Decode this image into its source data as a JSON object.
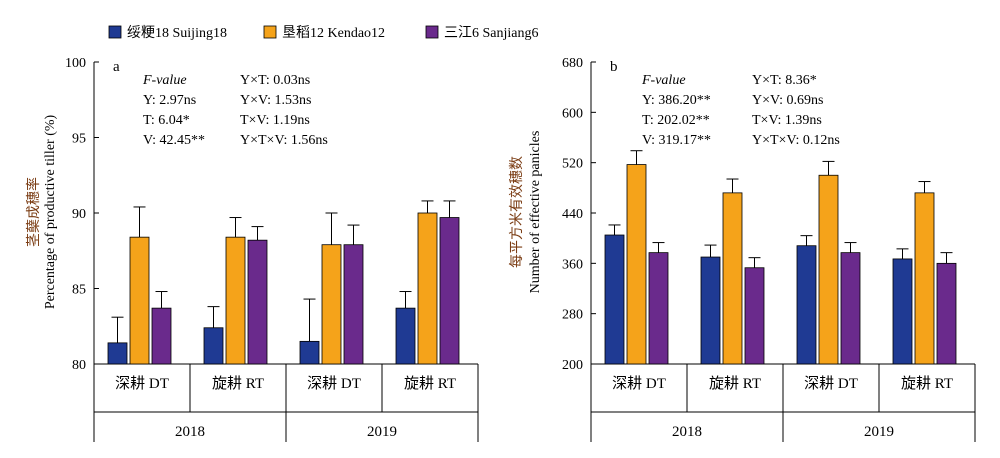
{
  "legend": [
    {
      "label": "绥粳18 Suijing18",
      "color": "#1f3a93"
    },
    {
      "label": "垦稻12 Kendao12",
      "color": "#f5a31a"
    },
    {
      "label": "三江6 Sanjiang6",
      "color": "#6a2a8c"
    }
  ],
  "chart_data": [
    {
      "type": "bar",
      "panel_label": "a",
      "ylabel_cn": "茎蘖成穗率",
      "ylabel_en": "Percentage of productive tiller (%)",
      "ylim": [
        80,
        100
      ],
      "yticks": [
        80,
        85,
        90,
        95,
        100
      ],
      "categories": [
        "深耕 DT",
        "旋耕 RT",
        "深耕 DT",
        "旋耕 RT"
      ],
      "groups": [
        "2018",
        "2019"
      ],
      "series": [
        {
          "name": "绥粳18 Suijing18",
          "values": [
            81.4,
            82.4,
            81.5,
            83.7
          ],
          "errors": [
            1.7,
            1.4,
            2.8,
            1.1
          ]
        },
        {
          "name": "垦稻12 Kendao12",
          "values": [
            88.4,
            88.4,
            87.9,
            90.0
          ],
          "errors": [
            2.0,
            1.3,
            2.1,
            0.8
          ]
        },
        {
          "name": "三江6 Sanjiang6",
          "values": [
            83.7,
            88.2,
            87.9,
            89.7
          ],
          "errors": [
            1.1,
            0.9,
            1.3,
            1.1
          ]
        }
      ],
      "stats_header": "F-value",
      "stats_col1": [
        "Y: 2.97ns",
        "T: 6.04*",
        "V: 42.45**"
      ],
      "stats_col2": [
        "Y×T: 0.03ns",
        "Y×V: 1.53ns",
        "T×V: 1.19ns",
        "Y×T×V: 1.56ns"
      ]
    },
    {
      "type": "bar",
      "panel_label": "b",
      "ylabel_cn": "每平方米有效穗数",
      "ylabel_en": "Number of effective panicles",
      "ylim": [
        200,
        680
      ],
      "yticks": [
        200,
        280,
        360,
        440,
        520,
        600,
        680
      ],
      "categories": [
        "深耕 DT",
        "旋耕 RT",
        "深耕 DT",
        "旋耕 RT"
      ],
      "groups": [
        "2018",
        "2019"
      ],
      "series": [
        {
          "name": "绥粳18 Suijing18",
          "values": [
            405,
            370,
            388,
            367
          ],
          "errors": [
            16,
            19,
            16,
            16
          ]
        },
        {
          "name": "垦稻12 Kendao12",
          "values": [
            517,
            472,
            500,
            472
          ],
          "errors": [
            22,
            22,
            22,
            18
          ]
        },
        {
          "name": "三江6 Sanjiang6",
          "values": [
            377,
            353,
            377,
            360
          ],
          "errors": [
            16,
            16,
            16,
            17
          ]
        }
      ],
      "stats_header": "F-value",
      "stats_col1": [
        "Y: 386.20**",
        "T: 202.02**",
        "V: 319.17**"
      ],
      "stats_col2": [
        "Y×T: 8.36*",
        "Y×V: 0.69ns",
        "T×V: 1.39ns",
        "Y×T×V: 0.12ns"
      ]
    }
  ]
}
